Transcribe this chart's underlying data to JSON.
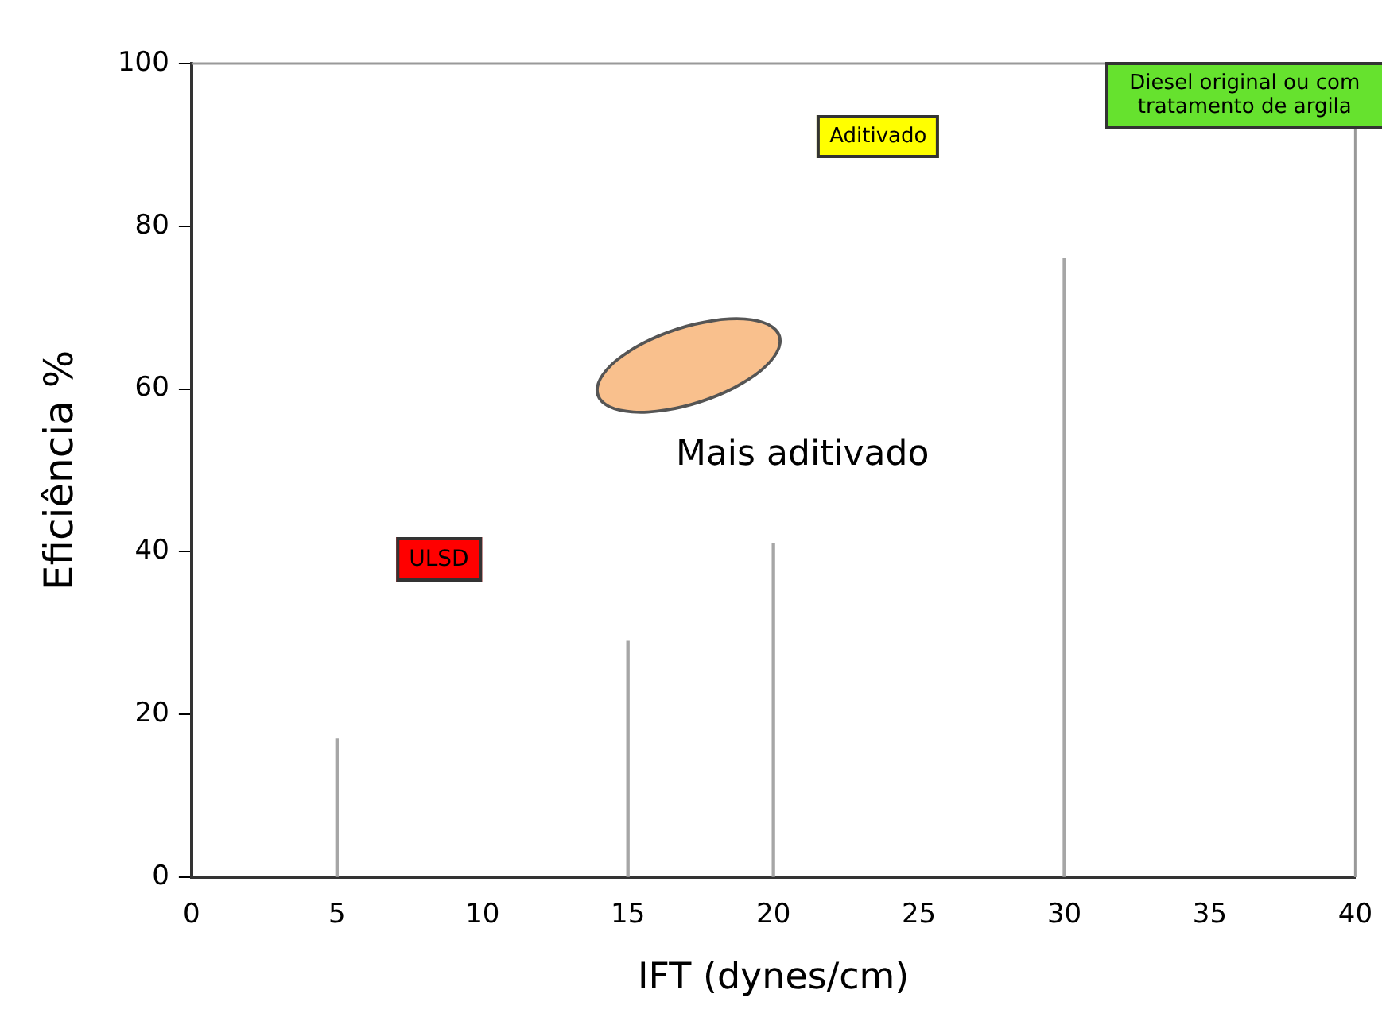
{
  "chart_data": {
    "type": "bar",
    "xlabel": "IFT (dynes/cm)",
    "ylabel": "Eficiência %",
    "x": [
      5,
      15,
      20,
      30
    ],
    "values": [
      17,
      29,
      41,
      76
    ],
    "color": "#a6a6a6",
    "xlim": [
      0,
      40
    ],
    "xticks": [
      0,
      5,
      10,
      15,
      20,
      25,
      30,
      35,
      40
    ],
    "ylim": [
      0,
      100
    ],
    "yticks": [
      0,
      20,
      40,
      60,
      80,
      100
    ],
    "annotations": [
      "ULSD",
      "Aditivado",
      "Diesel original ou com tratamento de argila",
      "Mais aditivado"
    ]
  }
}
